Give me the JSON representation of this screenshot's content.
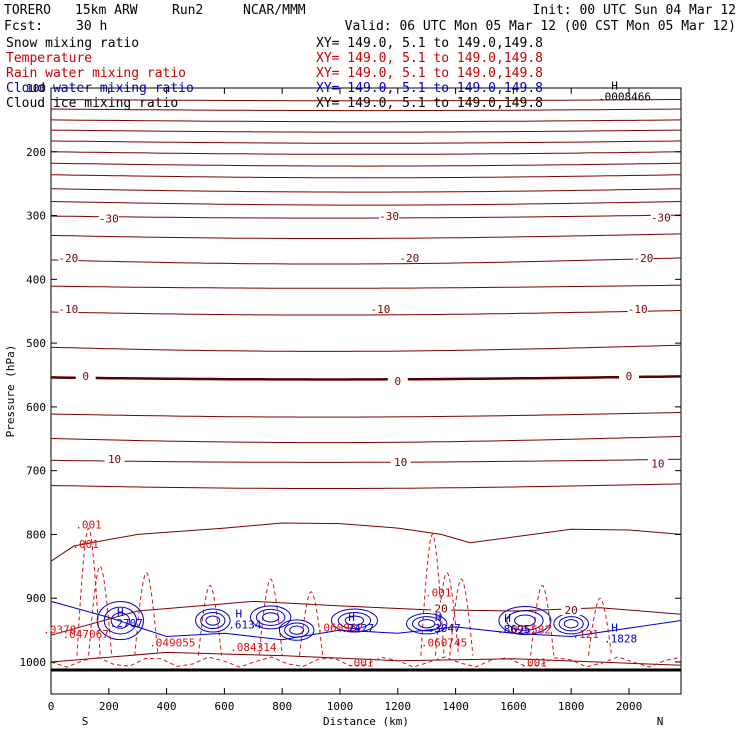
{
  "chart_data": {
    "type": "cross-section contour",
    "header": {
      "model": "TORERO",
      "resolution": "15km ARW",
      "run": "Run2",
      "center": "NCAR/MMM",
      "init": "Init: 00 UTC Sun 04 Mar 12",
      "fcst_label": "Fcst:",
      "fcst_value": "30 h",
      "valid": "Valid: 06 UTC Mon 05 Mar 12 (00 CST Mon 05 Mar 12)"
    },
    "legend": [
      {
        "name": "Snow mixing ratio",
        "xy": "XY= 149.0,  5.1 to 149.0,149.8",
        "color": "#000000"
      },
      {
        "name": "Temperature",
        "xy": "XY= 149.0,  5.1 to 149.0,149.8",
        "color": "#cc0000"
      },
      {
        "name": "Rain water mixing ratio",
        "xy": "XY= 149.0,  5.1 to 149.0,149.8",
        "color": "#cc0000"
      },
      {
        "name": "Cloud water mixing ratio",
        "xy": "XY= 149.0,  5.1 to 149.0,149.8",
        "color": "#0000cc"
      },
      {
        "name": "Cloud ice mixing ratio",
        "xy": "XY= 149.0,  5.1 to 149.0,149.8",
        "color": "#000000"
      }
    ],
    "xlabel": "Distance (km)",
    "ylabel": "Pressure (hPa)",
    "xlim": [
      0,
      2180
    ],
    "ylim": [
      1045,
      100
    ],
    "x_ticks": [
      0,
      200,
      400,
      600,
      800,
      1000,
      1200,
      1400,
      1600,
      1800,
      2000
    ],
    "y_ticks": [
      100,
      200,
      300,
      400,
      500,
      600,
      700,
      800,
      900,
      1000
    ],
    "endpoints": {
      "left": "S",
      "right": "N"
    },
    "temperature_contours": [
      {
        "value": "-30",
        "label_points": [
          [
            200,
            306
          ],
          [
            1170,
            302
          ],
          [
            2110,
            305
          ]
        ]
      },
      {
        "value": "-20",
        "label_points": [
          [
            60,
            368
          ],
          [
            1240,
            368
          ],
          [
            2050,
            368
          ]
        ]
      },
      {
        "value": "-10",
        "label_points": [
          [
            60,
            448
          ],
          [
            1140,
            448
          ],
          [
            2030,
            448
          ]
        ]
      },
      {
        "value": "0",
        "label_points": [
          [
            120,
            553
          ],
          [
            1200,
            561
          ],
          [
            2000,
            553
          ]
        ]
      },
      {
        "value": "10",
        "label_points": [
          [
            220,
            683
          ],
          [
            1210,
            688
          ],
          [
            2100,
            690
          ]
        ]
      },
      {
        "value": "20",
        "label_points": [
          [
            1800,
            920
          ],
          [
            1350,
            918
          ]
        ]
      }
    ],
    "maxima_labels": [
      {
        "text": "H",
        "value": ".0008466",
        "x": 1950,
        "p": 102
      },
      {
        "text": "H",
        "value": ".2707",
        "x": 240,
        "p": 928
      },
      {
        "text": "H",
        "value": ".6134",
        "x": 650,
        "p": 930
      },
      {
        "text": "H",
        "value": ".2427",
        "x": 1040,
        "p": 936
      },
      {
        "text": "H",
        "value": ".3047",
        "x": 1340,
        "p": 936
      },
      {
        "text": "H",
        "value": ".8695",
        "x": 1580,
        "p": 937
      },
      {
        "text": "H",
        "value": ".1828",
        "x": 1950,
        "p": 952
      }
    ],
    "rain_labels": [
      {
        "value": ".001",
        "x": 130,
        "p": 791
      },
      {
        "value": ".001",
        "x": 120,
        "p": 821
      },
      {
        "value": ".001",
        "x": 1340,
        "p": 897
      },
      {
        "value": ".047067",
        "x": 120,
        "p": 962
      },
      {
        "value": ".049055",
        "x": 420,
        "p": 976
      },
      {
        "value": ".084314",
        "x": 700,
        "p": 983
      },
      {
        "value": ".060962",
        "x": 1000,
        "p": 952
      },
      {
        "value": ".060745",
        "x": 1360,
        "p": 976
      },
      {
        "value": ".026582",
        "x": 1650,
        "p": 955
      },
      {
        "value": ".121",
        "x": 1850,
        "p": 962
      },
      {
        "value": ".001",
        "x": 1070,
        "p": 1007
      },
      {
        "value": ".001",
        "x": 1670,
        "p": 1007
      },
      {
        "value": ".0378",
        "x": 30,
        "p": 955
      }
    ],
    "series_levels": {
      "upper_isotherms_hpa": [
        118,
        133,
        150,
        166,
        183,
        200,
        218,
        236,
        258,
        278
      ]
    }
  }
}
